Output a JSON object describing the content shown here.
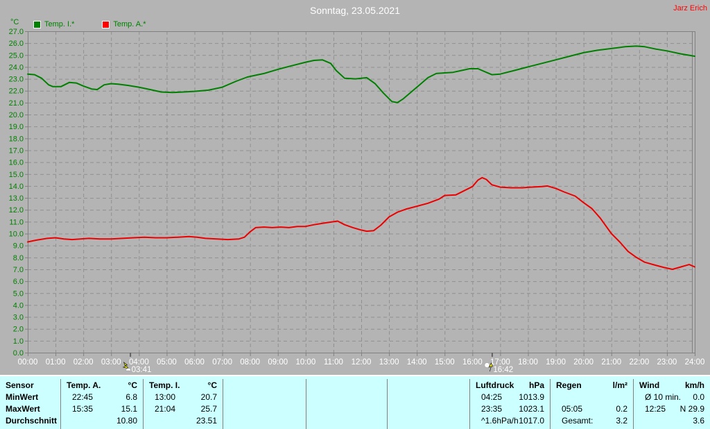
{
  "header": {
    "title": "Sonntag, 23.05.2021",
    "user": "Jarz Erich"
  },
  "legend": {
    "axis_unit": "°C",
    "items": [
      {
        "label": "Temp. I.*",
        "color": "#008000"
      },
      {
        "label": "Temp. A.*",
        "color": "#ff0000"
      }
    ]
  },
  "colors": {
    "background": "#b4b4b4",
    "plot_border": "#808080",
    "grid": "#8f8f8f",
    "x_labels": "#ffffff",
    "y_labels": "#008000",
    "table_bg": "#ccffff",
    "title": "#ffffff",
    "user": "#ff0000"
  },
  "chart_data": {
    "type": "line",
    "title": "Sonntag, 23.05.2021",
    "ylabel": "°C",
    "ylim": [
      0,
      27
    ],
    "ytick_step": 1,
    "xlim_hours": [
      0,
      24
    ],
    "grid": true,
    "legend_position": "top-left",
    "xtick_labels": [
      "00:00",
      "01:00",
      "02:00",
      "03:00",
      "04:00",
      "05:00",
      "06:00",
      "07:00",
      "08:00",
      "09:00",
      "10:00",
      "11:00",
      "12:00",
      "13:00",
      "14:00",
      "15:00",
      "16:00",
      "17:00",
      "18:00",
      "19:00",
      "20:00",
      "21:00",
      "22:00",
      "23:00",
      "24:00"
    ],
    "series": [
      {
        "name": "Temp. I.*",
        "color": "#008000",
        "points": [
          [
            0,
            23.4
          ],
          [
            0.25,
            23.35
          ],
          [
            0.5,
            23.05
          ],
          [
            0.75,
            22.5
          ],
          [
            0.9,
            22.35
          ],
          [
            1.2,
            22.35
          ],
          [
            1.5,
            22.7
          ],
          [
            1.75,
            22.65
          ],
          [
            2.0,
            22.4
          ],
          [
            2.3,
            22.15
          ],
          [
            2.5,
            22.1
          ],
          [
            2.75,
            22.5
          ],
          [
            3.0,
            22.6
          ],
          [
            3.25,
            22.55
          ],
          [
            3.6,
            22.45
          ],
          [
            4.0,
            22.3
          ],
          [
            4.4,
            22.1
          ],
          [
            4.8,
            21.9
          ],
          [
            5.2,
            21.85
          ],
          [
            5.6,
            21.9
          ],
          [
            6.0,
            21.95
          ],
          [
            6.5,
            22.05
          ],
          [
            7.0,
            22.3
          ],
          [
            7.5,
            22.8
          ],
          [
            7.9,
            23.15
          ],
          [
            8.2,
            23.3
          ],
          [
            8.5,
            23.45
          ],
          [
            9.0,
            23.8
          ],
          [
            9.5,
            24.1
          ],
          [
            10.0,
            24.4
          ],
          [
            10.3,
            24.55
          ],
          [
            10.6,
            24.6
          ],
          [
            10.9,
            24.3
          ],
          [
            11.1,
            23.7
          ],
          [
            11.4,
            23.05
          ],
          [
            11.8,
            23.0
          ],
          [
            12.0,
            23.05
          ],
          [
            12.2,
            23.1
          ],
          [
            12.5,
            22.6
          ],
          [
            12.8,
            21.8
          ],
          [
            13.1,
            21.1
          ],
          [
            13.3,
            21.0
          ],
          [
            13.5,
            21.3
          ],
          [
            13.8,
            21.9
          ],
          [
            14.1,
            22.5
          ],
          [
            14.4,
            23.1
          ],
          [
            14.7,
            23.45
          ],
          [
            15.0,
            23.5
          ],
          [
            15.3,
            23.55
          ],
          [
            15.6,
            23.7
          ],
          [
            15.9,
            23.85
          ],
          [
            16.2,
            23.85
          ],
          [
            16.5,
            23.55
          ],
          [
            16.7,
            23.35
          ],
          [
            17.0,
            23.4
          ],
          [
            17.5,
            23.7
          ],
          [
            18.0,
            24.0
          ],
          [
            18.5,
            24.3
          ],
          [
            19.0,
            24.6
          ],
          [
            19.5,
            24.9
          ],
          [
            20.0,
            25.2
          ],
          [
            20.5,
            25.4
          ],
          [
            21.0,
            25.55
          ],
          [
            21.5,
            25.7
          ],
          [
            21.9,
            25.75
          ],
          [
            22.2,
            25.7
          ],
          [
            22.6,
            25.5
          ],
          [
            23.0,
            25.35
          ],
          [
            23.5,
            25.1
          ],
          [
            24.0,
            24.9
          ]
        ]
      },
      {
        "name": "Temp. A.*",
        "color": "#ee0000",
        "points": [
          [
            0,
            9.3
          ],
          [
            0.3,
            9.45
          ],
          [
            0.7,
            9.6
          ],
          [
            1.0,
            9.65
          ],
          [
            1.3,
            9.55
          ],
          [
            1.6,
            9.5
          ],
          [
            1.9,
            9.55
          ],
          [
            2.2,
            9.6
          ],
          [
            2.6,
            9.55
          ],
          [
            3.0,
            9.55
          ],
          [
            3.4,
            9.6
          ],
          [
            3.8,
            9.65
          ],
          [
            4.2,
            9.7
          ],
          [
            4.6,
            9.65
          ],
          [
            5.0,
            9.65
          ],
          [
            5.4,
            9.7
          ],
          [
            5.8,
            9.75
          ],
          [
            6.1,
            9.7
          ],
          [
            6.4,
            9.6
          ],
          [
            6.8,
            9.55
          ],
          [
            7.2,
            9.5
          ],
          [
            7.6,
            9.55
          ],
          [
            7.8,
            9.7
          ],
          [
            8.0,
            10.15
          ],
          [
            8.2,
            10.5
          ],
          [
            8.5,
            10.55
          ],
          [
            8.8,
            10.5
          ],
          [
            9.1,
            10.55
          ],
          [
            9.4,
            10.5
          ],
          [
            9.7,
            10.6
          ],
          [
            10.0,
            10.6
          ],
          [
            10.3,
            10.75
          ],
          [
            10.7,
            10.9
          ],
          [
            11.0,
            11.0
          ],
          [
            11.15,
            11.05
          ],
          [
            11.4,
            10.75
          ],
          [
            11.7,
            10.5
          ],
          [
            12.0,
            10.3
          ],
          [
            12.2,
            10.2
          ],
          [
            12.45,
            10.25
          ],
          [
            12.7,
            10.7
          ],
          [
            13.0,
            11.4
          ],
          [
            13.3,
            11.8
          ],
          [
            13.6,
            12.05
          ],
          [
            14.0,
            12.3
          ],
          [
            14.4,
            12.55
          ],
          [
            14.8,
            12.9
          ],
          [
            15.0,
            13.2
          ],
          [
            15.4,
            13.25
          ],
          [
            15.7,
            13.6
          ],
          [
            16.0,
            13.95
          ],
          [
            16.2,
            14.5
          ],
          [
            16.35,
            14.7
          ],
          [
            16.5,
            14.55
          ],
          [
            16.7,
            14.1
          ],
          [
            17.0,
            13.9
          ],
          [
            17.4,
            13.85
          ],
          [
            17.8,
            13.85
          ],
          [
            18.1,
            13.9
          ],
          [
            18.5,
            13.95
          ],
          [
            18.7,
            14.0
          ],
          [
            19.0,
            13.8
          ],
          [
            19.3,
            13.5
          ],
          [
            19.7,
            13.15
          ],
          [
            20.0,
            12.6
          ],
          [
            20.3,
            12.1
          ],
          [
            20.6,
            11.3
          ],
          [
            21.0,
            10.0
          ],
          [
            21.3,
            9.3
          ],
          [
            21.6,
            8.5
          ],
          [
            21.9,
            8.0
          ],
          [
            22.2,
            7.6
          ],
          [
            22.5,
            7.4
          ],
          [
            22.9,
            7.15
          ],
          [
            23.2,
            7.0
          ],
          [
            23.5,
            7.2
          ],
          [
            23.8,
            7.4
          ],
          [
            24.0,
            7.2
          ]
        ]
      }
    ],
    "markers": [
      {
        "time": "03:41",
        "hour": 3.683,
        "icon": "sunrise-icon"
      },
      {
        "time": "16:42",
        "hour": 16.7,
        "icon": "sunset-icon"
      }
    ]
  },
  "table": {
    "row_labels": [
      "Sensor",
      "MinWert",
      "MaxWert",
      "Durchschnitt"
    ],
    "columns": [
      {
        "name": "Temp. A.",
        "unit": "°C",
        "rows": [
          [
            "22:45",
            "6.8"
          ],
          [
            "15:35",
            "15.1"
          ],
          [
            "",
            "10.80"
          ]
        ]
      },
      {
        "name": "Temp. I.",
        "unit": "°C",
        "rows": [
          [
            "13:00",
            "20.7"
          ],
          [
            "21:04",
            "25.7"
          ],
          [
            "",
            "23.51"
          ]
        ]
      },
      {
        "name": "",
        "unit": "",
        "rows": [
          [
            "",
            ""
          ],
          [
            "",
            ""
          ],
          [
            "",
            ""
          ]
        ]
      },
      {
        "name": "",
        "unit": "",
        "rows": [
          [
            "",
            ""
          ],
          [
            "",
            ""
          ],
          [
            "",
            ""
          ]
        ]
      },
      {
        "name": "",
        "unit": "",
        "rows": [
          [
            "",
            ""
          ],
          [
            "",
            ""
          ],
          [
            "",
            ""
          ]
        ]
      },
      {
        "name": "Luftdruck",
        "unit": "hPa",
        "rows": [
          [
            "04:25",
            "1013.9"
          ],
          [
            "23:35",
            "1023.1"
          ],
          [
            "^1.6hPa/h",
            "1017.0"
          ]
        ]
      },
      {
        "name": "Regen",
        "unit": "l/m²",
        "rows": [
          [
            "",
            ""
          ],
          [
            "05:05",
            "0.2"
          ],
          [
            "Gesamt:",
            "3.2"
          ]
        ]
      },
      {
        "name": "Wind",
        "unit": "km/h",
        "rows": [
          [
            "Ø 10 min.",
            "0.0"
          ],
          [
            "12:25",
            "N 29.9"
          ],
          [
            "",
            "3.6"
          ]
        ]
      }
    ]
  }
}
